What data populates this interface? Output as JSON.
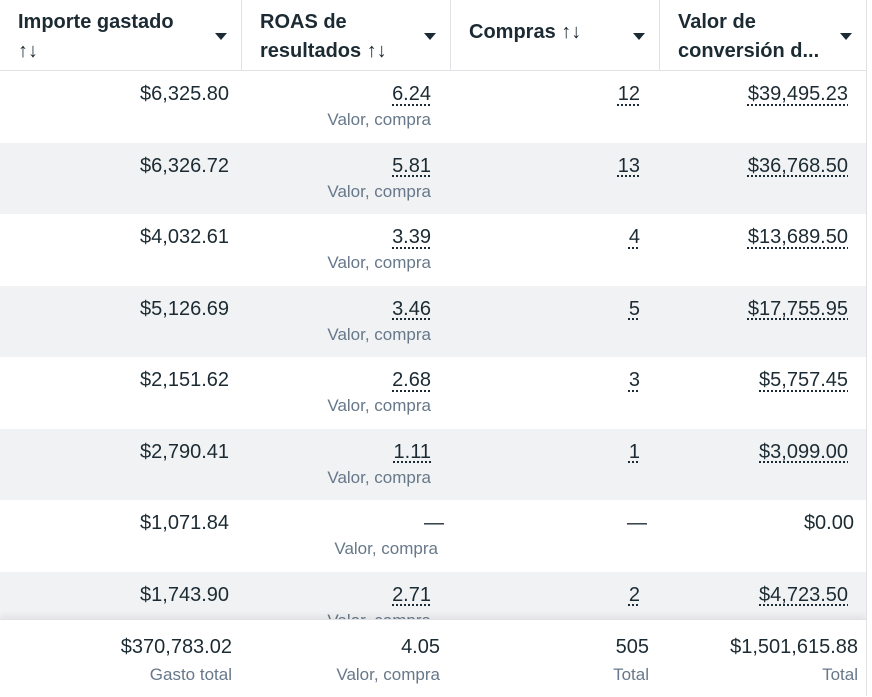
{
  "columns": [
    {
      "line1": "Importe gastado",
      "line2": "↑↓"
    },
    {
      "line1": "ROAS de",
      "line2": "resultados ↑↓"
    },
    {
      "line1": "Compras ↑↓",
      "line2": ""
    },
    {
      "line1": "Valor de",
      "line2": "conversión d..."
    }
  ],
  "rows": [
    {
      "spent": "$6,325.80",
      "roas": "6.24",
      "roas_sub": "Valor, compra",
      "purchases": "12",
      "value": "$39,495.23"
    },
    {
      "spent": "$6,326.72",
      "roas": "5.81",
      "roas_sub": "Valor, compra",
      "purchases": "13",
      "value": "$36,768.50"
    },
    {
      "spent": "$4,032.61",
      "roas": "3.39",
      "roas_sub": "Valor, compra",
      "purchases": "4",
      "value": "$13,689.50"
    },
    {
      "spent": "$5,126.69",
      "roas": "3.46",
      "roas_sub": "Valor, compra",
      "purchases": "5",
      "value": "$17,755.95"
    },
    {
      "spent": "$2,151.62",
      "roas": "2.68",
      "roas_sub": "Valor, compra",
      "purchases": "3",
      "value": "$5,757.45"
    },
    {
      "spent": "$2,790.41",
      "roas": "1.11",
      "roas_sub": "Valor, compra",
      "purchases": "1",
      "value": "$3,099.00"
    },
    {
      "spent": "$1,071.84",
      "roas": "—",
      "roas_sub": "Valor, compra",
      "purchases": "—",
      "value": "$0.00"
    },
    {
      "spent": "$1,743.90",
      "roas": "2.71",
      "roas_sub": "Valor, compra",
      "purchases": "2",
      "value": "$4,723.50"
    }
  ],
  "totals": {
    "spent": "$370,783.02",
    "spent_sub": "Gasto total",
    "roas": "4.05",
    "roas_sub": "Valor, compra",
    "purchases": "505",
    "purchases_sub": "Total",
    "value": "$1,501,615.88",
    "value_sub": "Total"
  }
}
